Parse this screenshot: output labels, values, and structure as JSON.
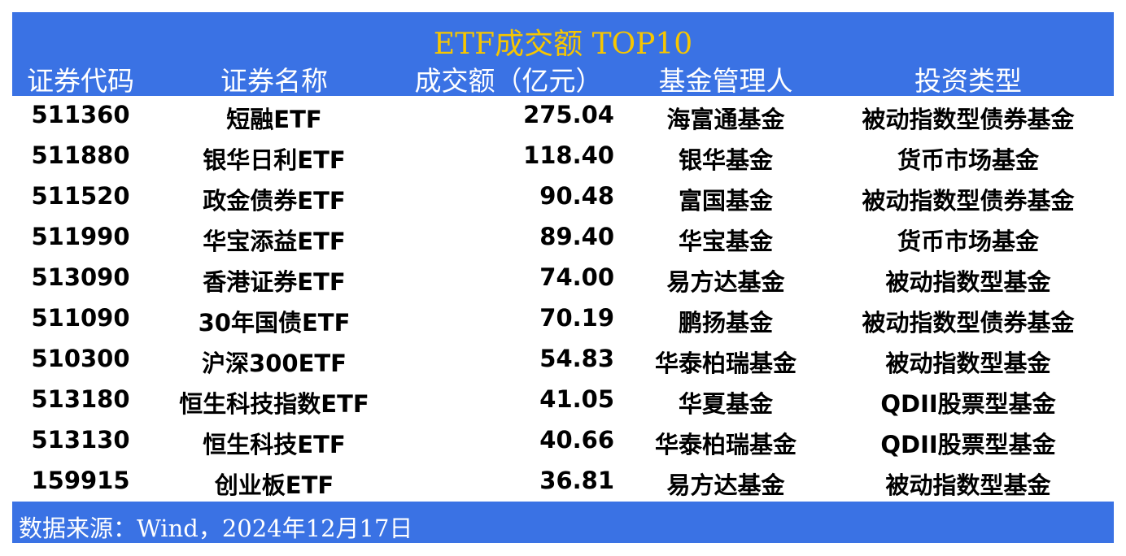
{
  "title": "ETF成交额 TOP10",
  "headers": [
    "证券代码",
    "证券名称",
    "成交额（亿元）",
    "基金管理人",
    "投资类型"
  ],
  "rows": [
    [
      "511360",
      "短融ETF",
      "275.04",
      "海富通基金",
      "被动指数型债券基金"
    ],
    [
      "511880",
      "银华日利ETF",
      "118.40",
      "银华基金",
      "货币市场基金"
    ],
    [
      "511520",
      "政金债券ETF",
      "90.48",
      "富国基金",
      "被动指数型债券基金"
    ],
    [
      "511990",
      "华宝添益ETF",
      "89.40",
      "华宝基金",
      "货币市场基金"
    ],
    [
      "513090",
      "香港证券ETF",
      "74.00",
      "易方达基金",
      "被动指数型基金"
    ],
    [
      "511090",
      "30年国债ETF",
      "70.19",
      "鹏扬基金",
      "被动指数型债券基金"
    ],
    [
      "510300",
      "沪深300ETF",
      "54.83",
      "华泰柏瑞基金",
      "被动指数型基金"
    ],
    [
      "513180",
      "恒生科技指数ETF",
      "41.05",
      "华夏基金",
      "QDII股票型基金"
    ],
    [
      "513130",
      "恒生科技ETF",
      "40.66",
      "华泰柏瑞基金",
      "QDII股票型基金"
    ],
    [
      "159915",
      "创业板ETF",
      "36.81",
      "易方达基金",
      "被动指数型基金"
    ]
  ],
  "footer": "数据来源：Wind，2024年12月17日",
  "colors": {
    "header_bg": "#3a72e4",
    "title": "#f7c600"
  }
}
